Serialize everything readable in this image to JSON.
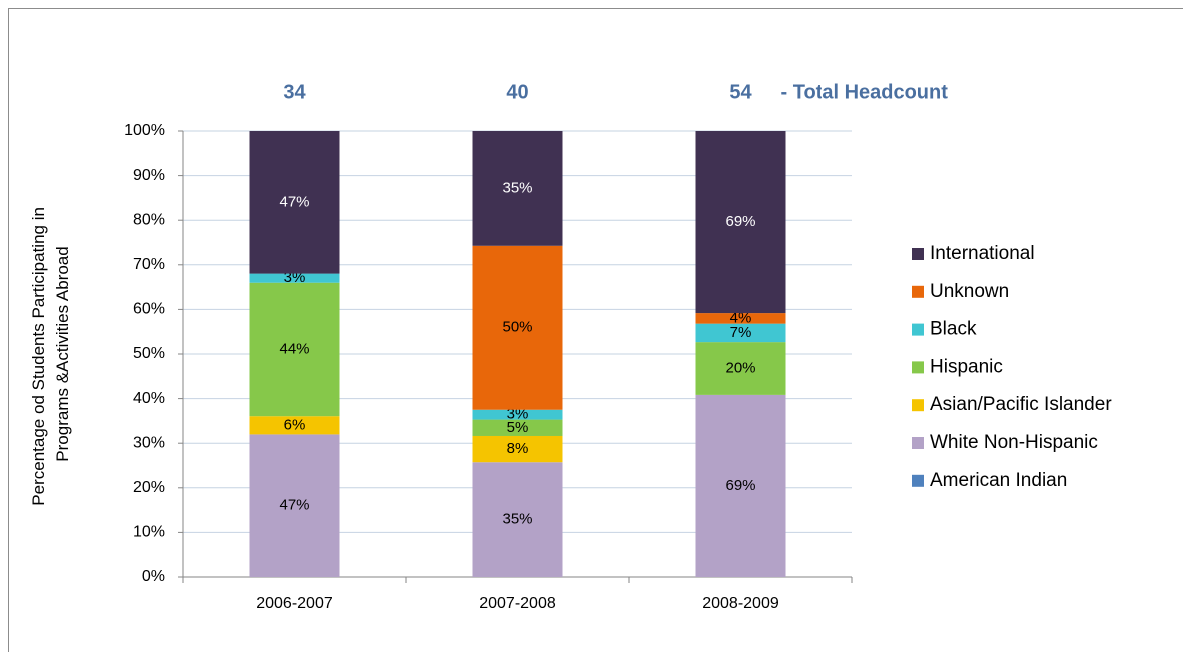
{
  "chart_data": {
    "type": "bar",
    "stacking": "percent",
    "categories": [
      "2006-2007",
      "2007-2008",
      "2008-2009"
    ],
    "totals": [
      34,
      40,
      54
    ],
    "totals_label": "-  Total Headcount",
    "y_label": [
      "Percentage od Students Participating in",
      "Programs &Activities Abroad"
    ],
    "ylim": [
      0,
      100
    ],
    "yticks": [
      {
        "value": 0,
        "label": "0%"
      },
      {
        "value": 10,
        "label": "10%"
      },
      {
        "value": 20,
        "label": "20%"
      },
      {
        "value": 30,
        "label": "30%"
      },
      {
        "value": 40,
        "label": "40%"
      },
      {
        "value": 50,
        "label": "50%"
      },
      {
        "value": 60,
        "label": "60%"
      },
      {
        "value": 70,
        "label": "70%"
      },
      {
        "value": 80,
        "label": "80%"
      },
      {
        "value": 90,
        "label": "90%"
      },
      {
        "value": 100,
        "label": "100%"
      }
    ],
    "grid": true,
    "legend": "right",
    "series": [
      {
        "name": "American Indian",
        "color": "#4f81bd",
        "values": [
          null,
          null,
          null
        ],
        "value_labels": [
          null,
          null,
          null
        ]
      },
      {
        "name": "White Non-Hispanic",
        "color": "#b3a2c7",
        "values": [
          47,
          35,
          69
        ],
        "value_labels": [
          "47%",
          "35%",
          "69%"
        ]
      },
      {
        "name": "Asian/Pacific Islander",
        "color": "#f5c400",
        "values": [
          6,
          8,
          null
        ],
        "value_labels": [
          "6%",
          "8%",
          null
        ]
      },
      {
        "name": "Hispanic",
        "color": "#86c84a",
        "values": [
          44,
          5,
          20
        ],
        "value_labels": [
          "44%",
          "5%",
          "20%"
        ]
      },
      {
        "name": "Black",
        "color": "#40c6d2",
        "values": [
          3,
          3,
          7
        ],
        "value_labels": [
          "3%",
          "3%",
          "7%"
        ]
      },
      {
        "name": "Unknown",
        "color": "#e8670a",
        "values": [
          null,
          50,
          4
        ],
        "value_labels": [
          null,
          "50%",
          "4%"
        ]
      },
      {
        "name": "International",
        "color": "#403152",
        "values": [
          47,
          35,
          69
        ],
        "value_labels": [
          "47%",
          "35%",
          "69%"
        ]
      }
    ]
  }
}
